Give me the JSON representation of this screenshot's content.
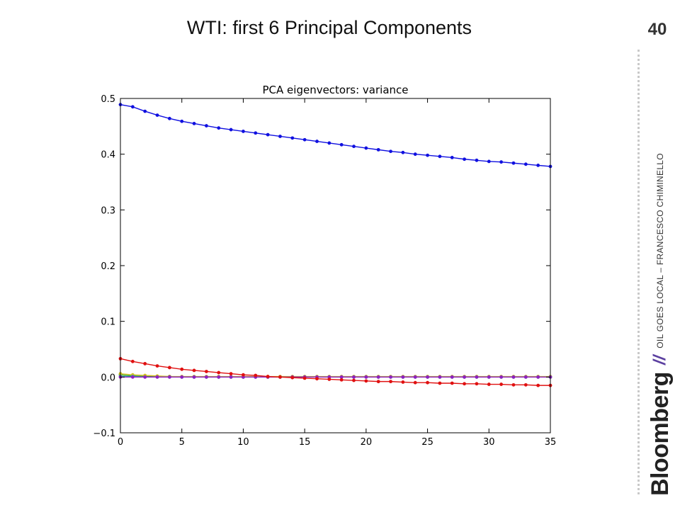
{
  "slide": {
    "title": "WTI: first 6 Principal Components",
    "page_number": "40",
    "brand": "Bloomberg",
    "separator": "//",
    "footer": "OIL GOES LOCAL – FRANCESCO CHIMINELLO"
  },
  "colors": {
    "blue": "#1010e0",
    "red": "#e01010",
    "purple": "#9020c0",
    "green": "#20a020",
    "yellow": "#d0c020",
    "cyan": "#20b0c0"
  },
  "chart_data": {
    "type": "line",
    "title": "PCA eigenvectors: variance",
    "xlabel": "",
    "ylabel": "",
    "xlim": [
      0,
      35
    ],
    "ylim": [
      -0.1,
      0.5
    ],
    "xticks": [
      "0",
      "5",
      "10",
      "15",
      "20",
      "25",
      "30",
      "35"
    ],
    "yticks": [
      "−0.1",
      "0.0",
      "0.1",
      "0.2",
      "0.3",
      "0.4",
      "0.5"
    ],
    "grid": false,
    "legend": "none",
    "x": [
      0,
      1,
      2,
      3,
      4,
      5,
      6,
      7,
      8,
      9,
      10,
      11,
      12,
      13,
      14,
      15,
      16,
      17,
      18,
      19,
      20,
      21,
      22,
      23,
      24,
      25,
      26,
      27,
      28,
      29,
      30,
      31,
      32,
      33,
      34,
      35
    ],
    "series": [
      {
        "color": "blue",
        "values": [
          0.489,
          0.485,
          0.477,
          0.47,
          0.464,
          0.459,
          0.455,
          0.451,
          0.447,
          0.444,
          0.441,
          0.438,
          0.435,
          0.432,
          0.429,
          0.426,
          0.423,
          0.42,
          0.417,
          0.414,
          0.411,
          0.408,
          0.405,
          0.403,
          0.4,
          0.398,
          0.396,
          0.394,
          0.391,
          0.389,
          0.387,
          0.386,
          0.384,
          0.382,
          0.38,
          0.378
        ]
      },
      {
        "color": "red",
        "values": [
          0.033,
          0.028,
          0.024,
          0.02,
          0.017,
          0.014,
          0.012,
          0.01,
          0.008,
          0.006,
          0.004,
          0.003,
          0.001,
          0.0,
          -0.001,
          -0.002,
          -0.003,
          -0.004,
          -0.005,
          -0.006,
          -0.007,
          -0.008,
          -0.008,
          -0.009,
          -0.01,
          -0.01,
          -0.011,
          -0.011,
          -0.012,
          -0.012,
          -0.013,
          -0.013,
          -0.014,
          -0.014,
          -0.015,
          -0.015
        ]
      },
      {
        "color": "green",
        "values": [
          0.004,
          0.002,
          0.001,
          0.001,
          0.001,
          0.0,
          0.0,
          0.0,
          0.0,
          0.0,
          0.0,
          0.0,
          0.0,
          0.0,
          0.0,
          0.0,
          0.0,
          0.0,
          0.0,
          0.0,
          0.0,
          0.0,
          0.0,
          0.0,
          0.0,
          0.0,
          0.0,
          0.0,
          0.0,
          0.0,
          0.0,
          0.0,
          0.0,
          0.0,
          0.0,
          0.0
        ]
      },
      {
        "color": "yellow",
        "values": [
          0.006,
          0.004,
          0.003,
          0.002,
          0.001,
          0.001,
          0.001,
          0.001,
          0.001,
          0.001,
          0.001,
          0.001,
          0.001,
          0.001,
          0.001,
          0.001,
          0.001,
          0.001,
          0.001,
          0.001,
          0.001,
          0.001,
          0.001,
          0.001,
          0.001,
          0.001,
          0.001,
          0.001,
          0.001,
          0.001,
          0.001,
          0.001,
          0.001,
          0.001,
          0.001,
          0.001
        ]
      },
      {
        "color": "cyan",
        "values": [
          0.001,
          0.001,
          0.0,
          0.0,
          0.0,
          0.0,
          0.0,
          0.0,
          0.0,
          0.0,
          0.0,
          0.0,
          0.0,
          0.0,
          0.0,
          0.0,
          0.0,
          0.0,
          0.0,
          0.0,
          0.0,
          0.0,
          0.0,
          0.0,
          0.0,
          0.0,
          0.0,
          0.0,
          0.0,
          0.0,
          0.0,
          0.0,
          0.0,
          0.0,
          0.0,
          0.0
        ]
      },
      {
        "color": "purple",
        "values": [
          0.0,
          0.0,
          0.0,
          0.0,
          0.0,
          0.0,
          0.0,
          0.0,
          0.0,
          0.0,
          0.0,
          0.0,
          0.0,
          0.0,
          0.0,
          0.0,
          0.0,
          0.0,
          0.0,
          0.0,
          0.0,
          0.0,
          0.0,
          0.0,
          0.0,
          0.0,
          0.0,
          0.0,
          0.0,
          0.0,
          0.0,
          0.0,
          0.0,
          0.0,
          0.0,
          0.0
        ]
      }
    ]
  }
}
